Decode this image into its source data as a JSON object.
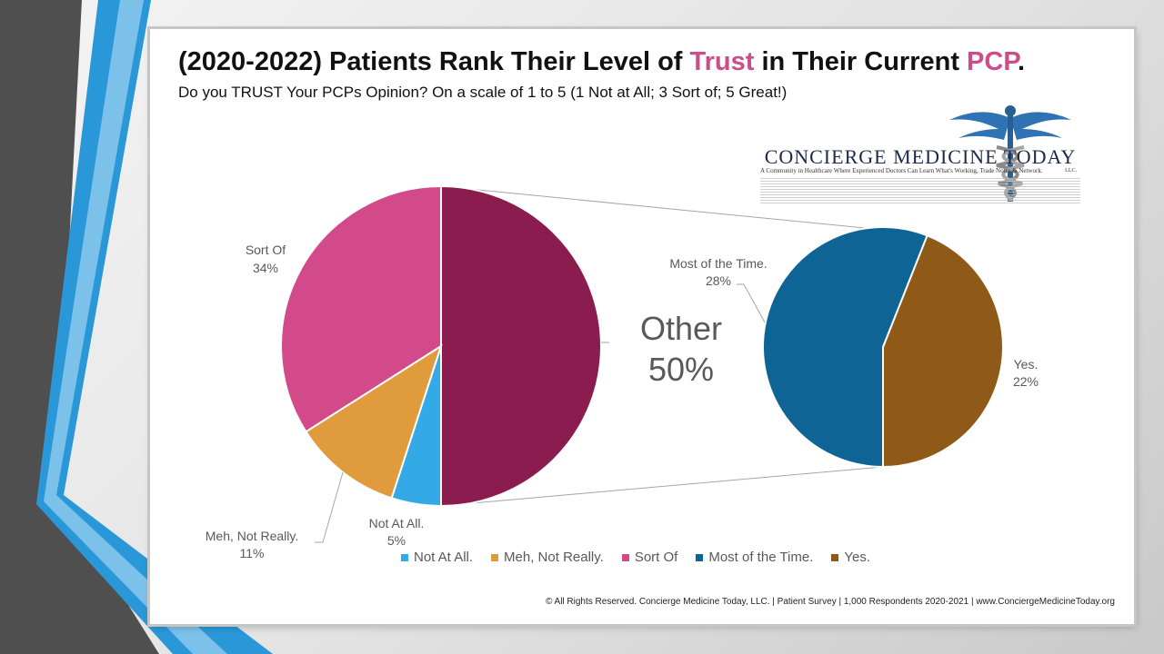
{
  "slide": {
    "title_part1": "(2020-2022) Patients Rank Their Level of ",
    "title_highlight1": "Trust",
    "title_part2": " in Their Current ",
    "title_highlight2": "PCP",
    "title_end": ".",
    "subtitle": "Do you TRUST Your PCPs Opinion? On a scale of 1 to 5 (1 Not at All; 3 Sort of; 5 Great!)",
    "footer": "© All Rights Reserved. Concierge Medicine Today, LLC. | Patient Survey | 1,000 Respondents 2020-2021 | www.ConciergeMedicineToday.org"
  },
  "logo": {
    "name": "CONCIERGE MEDICINE TODAY",
    "tagline": "A Community in Healthcare Where Experienced Doctors Can Learn What's Working, Trade Notes & Network.",
    "llc": "LLC.",
    "emblem": "caduceus-icon"
  },
  "colors": {
    "accent": "#cc4c8c",
    "not_at_all": "#33a9e6",
    "meh": "#e09b3d",
    "sort_of": "#d34a8a",
    "most": "#0f6496",
    "yes": "#8f5a17",
    "other": "#8b1c4f"
  },
  "chart_data": {
    "type": "pie",
    "subtype": "pie-of-pie",
    "title": "(2020-2022) Patients Rank Their Level of Trust in Their Current PCP.",
    "primary": [
      {
        "name": "Not At All.",
        "value": 5,
        "label": "5%",
        "color": "#33a9e6"
      },
      {
        "name": "Meh, Not Really.",
        "value": 11,
        "label": "11%",
        "color": "#e09b3d"
      },
      {
        "name": "Sort Of",
        "value": 34,
        "label": "34%",
        "color": "#d34a8a"
      },
      {
        "name": "Other",
        "value": 50,
        "label": "50%",
        "color": "#8b1c4f"
      }
    ],
    "secondary": [
      {
        "name": "Most of the Time.",
        "value": 28,
        "label": "28%",
        "color": "#0f6496"
      },
      {
        "name": "Yes.",
        "value": 22,
        "label": "22%",
        "color": "#8f5a17"
      }
    ],
    "legend": [
      "Not At All.",
      "Meh, Not Really.",
      "Sort Of",
      "Most of the Time.",
      "Yes."
    ],
    "legend_position": "bottom"
  }
}
